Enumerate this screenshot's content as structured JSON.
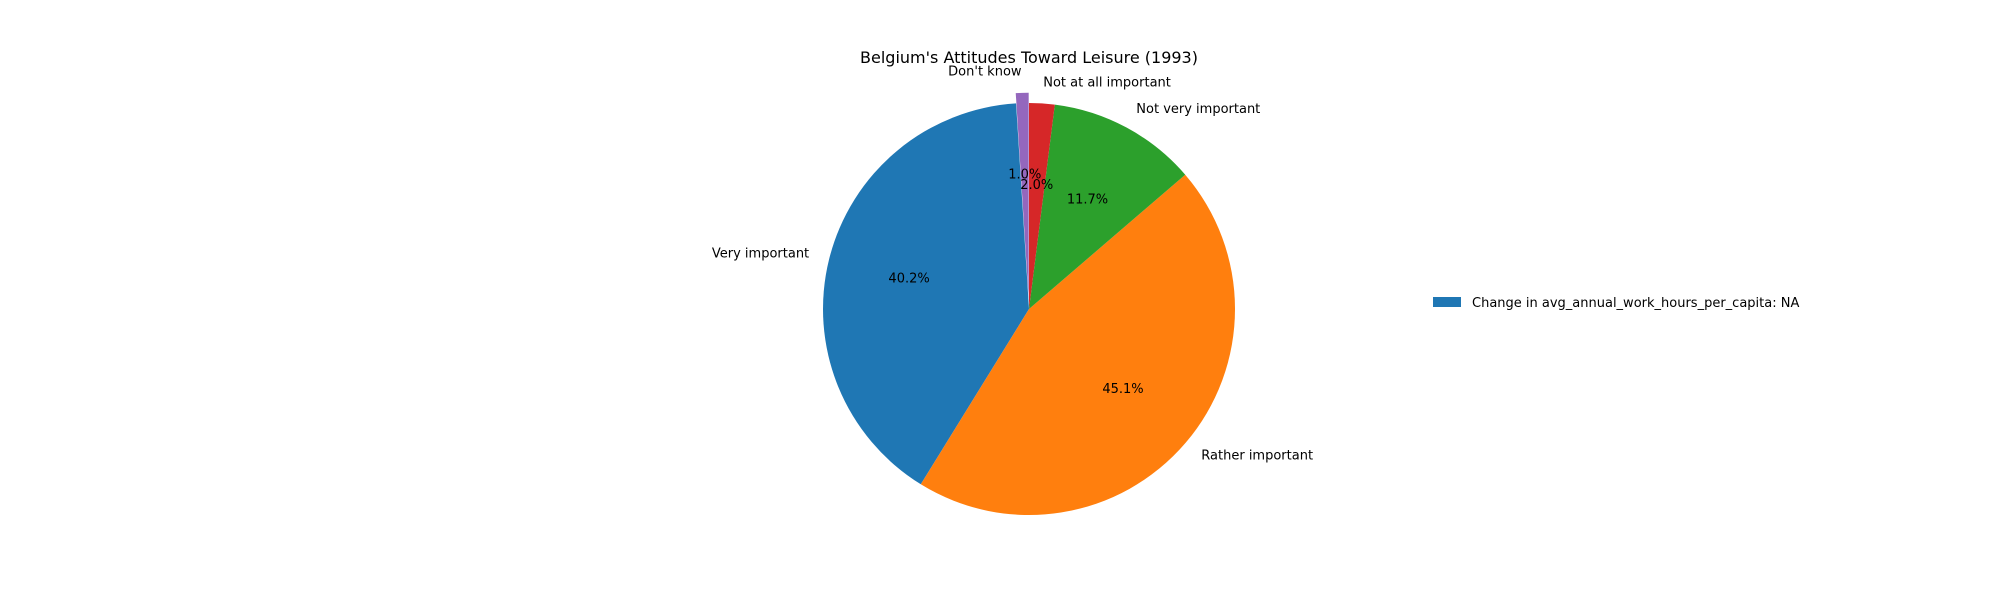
{
  "chart_data": {
    "type": "pie",
    "title": "Belgium's Attitudes Toward Leisure (1993)",
    "start_angle_deg": 90,
    "direction": "counterclockwise",
    "slices": [
      {
        "label": "Don't know",
        "value": 1.0,
        "pct_label": "1.0%",
        "color": "#9467bd",
        "exploded": true
      },
      {
        "label": "Very important",
        "value": 40.2,
        "pct_label": "40.2%",
        "color": "#1f77b4",
        "exploded": false
      },
      {
        "label": "Rather important",
        "value": 45.1,
        "pct_label": "45.1%",
        "color": "#ff7f0e",
        "exploded": false
      },
      {
        "label": "Not very important",
        "value": 11.7,
        "pct_label": "11.7%",
        "color": "#2ca02c",
        "exploded": false
      },
      {
        "label": "Not at all important",
        "value": 2.0,
        "pct_label": "2.0%",
        "color": "#d62728",
        "exploded": false
      }
    ],
    "legend": {
      "placement": "right",
      "entries": [
        {
          "label": "Change in avg_annual_work_hours_per_capita: NA",
          "color": "#1f77b4"
        }
      ]
    }
  }
}
